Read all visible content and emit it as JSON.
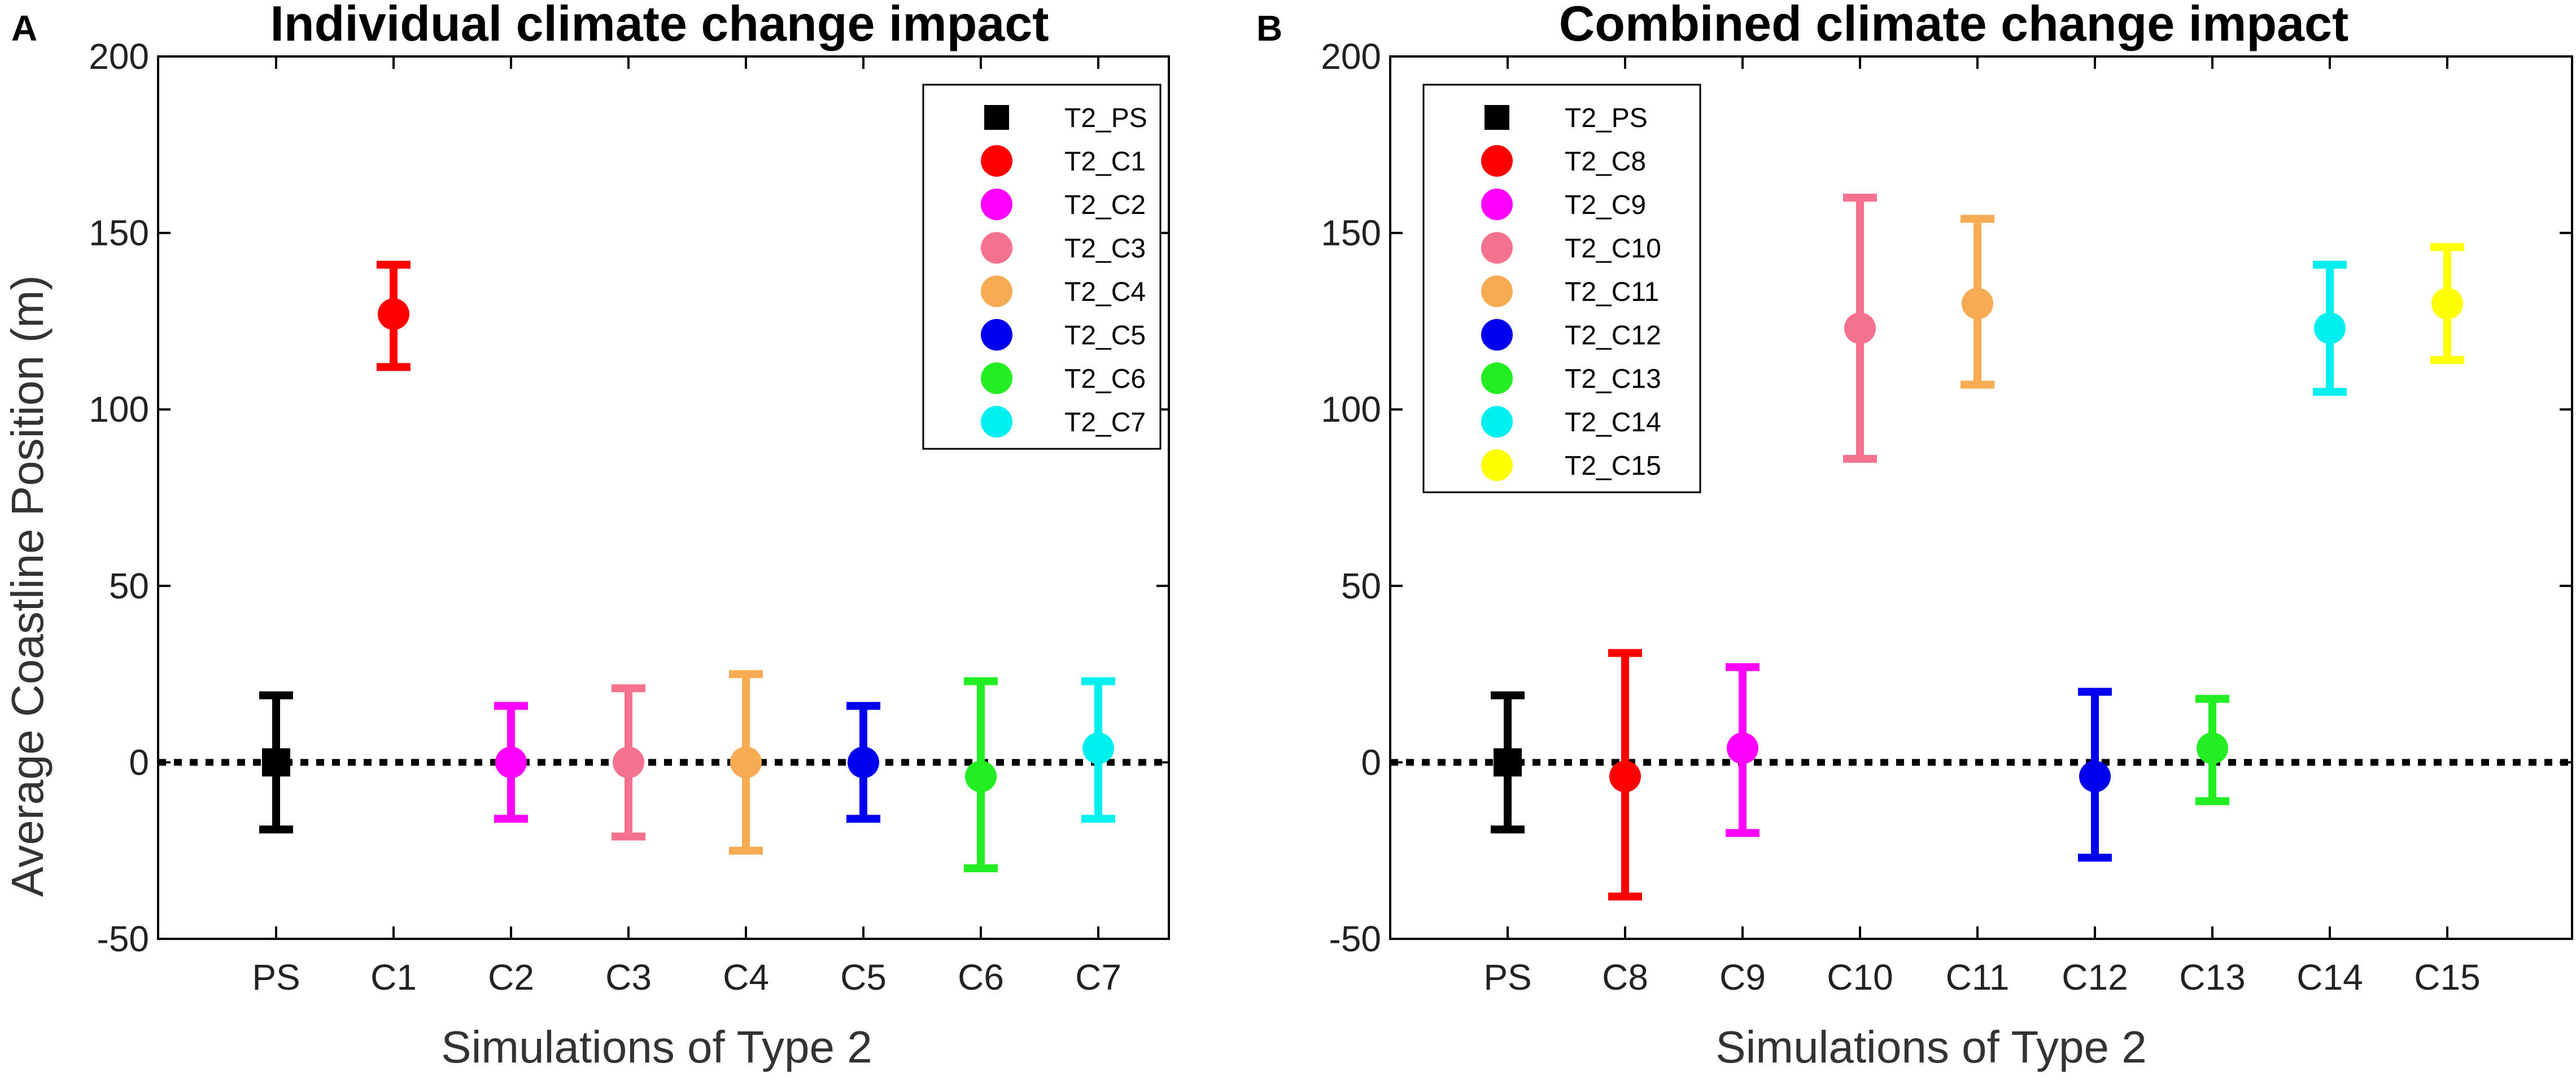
{
  "y_axis_label": "Average Coastline Position (m)",
  "x_axis_label": "Simulations of Type 2",
  "chart_data": [
    {
      "type": "scatter",
      "panel": "A",
      "title": "Individual climate change impact",
      "xlabel": "Simulations of Type 2",
      "ylabel": "Average Coastline Position (m)",
      "ylim": [
        -50,
        200
      ],
      "yticks": [
        -50,
        0,
        50,
        100,
        150,
        200
      ],
      "legend_position": "top-right",
      "zero_line": 0,
      "series": [
        {
          "category": "PS",
          "legend": "T2_PS",
          "marker": "square",
          "color": "#000000",
          "value": 0,
          "low": -19,
          "high": 19
        },
        {
          "category": "C1",
          "legend": "T2_C1",
          "marker": "circle",
          "color": "#ff0000",
          "value": 127,
          "low": 112,
          "high": 141
        },
        {
          "category": "C2",
          "legend": "T2_C2",
          "marker": "circle",
          "color": "#ff00ff",
          "value": 0,
          "low": -16,
          "high": 16
        },
        {
          "category": "C3",
          "legend": "T2_C3",
          "marker": "circle",
          "color": "#f5728e",
          "value": 0,
          "low": -21,
          "high": 21
        },
        {
          "category": "C4",
          "legend": "T2_C4",
          "marker": "circle",
          "color": "#f7ab52",
          "value": 0,
          "low": -25,
          "high": 25
        },
        {
          "category": "C5",
          "legend": "T2_C5",
          "marker": "circle",
          "color": "#0000ee",
          "value": 0,
          "low": -16,
          "high": 16
        },
        {
          "category": "C6",
          "legend": "T2_C6",
          "marker": "circle",
          "color": "#22ee22",
          "value": -4,
          "low": -30,
          "high": 23
        },
        {
          "category": "C7",
          "legend": "T2_C7",
          "marker": "circle",
          "color": "#00f0f0",
          "value": 4,
          "low": -16,
          "high": 23
        }
      ]
    },
    {
      "type": "scatter",
      "panel": "B",
      "title": "Combined climate change impact",
      "xlabel": "Simulations of Type 2",
      "ylabel": "",
      "ylim": [
        -50,
        200
      ],
      "yticks": [
        -50,
        0,
        50,
        100,
        150,
        200
      ],
      "legend_position": "top-left",
      "zero_line": 0,
      "series": [
        {
          "category": "PS",
          "legend": "T2_PS",
          "marker": "square",
          "color": "#000000",
          "value": 0,
          "low": -19,
          "high": 19
        },
        {
          "category": "C8",
          "legend": "T2_C8",
          "marker": "circle",
          "color": "#ff0000",
          "value": -4,
          "low": -38,
          "high": 31
        },
        {
          "category": "C9",
          "legend": "T2_C9",
          "marker": "circle",
          "color": "#ff00ff",
          "value": 4,
          "low": -20,
          "high": 27
        },
        {
          "category": "C10",
          "legend": "T2_C10",
          "marker": "circle",
          "color": "#f5728e",
          "value": 123,
          "low": 86,
          "high": 160
        },
        {
          "category": "C11",
          "legend": "T2_C11",
          "marker": "circle",
          "color": "#f7ab52",
          "value": 130,
          "low": 107,
          "high": 154
        },
        {
          "category": "C12",
          "legend": "T2_C12",
          "marker": "circle",
          "color": "#0000ee",
          "value": -4,
          "low": -27,
          "high": 20
        },
        {
          "category": "C13",
          "legend": "T2_C13",
          "marker": "circle",
          "color": "#22ee22",
          "value": 4,
          "low": -11,
          "high": 18
        },
        {
          "category": "C14",
          "legend": "T2_C14",
          "marker": "circle",
          "color": "#00f0f0",
          "value": 123,
          "low": 105,
          "high": 141
        },
        {
          "category": "C15",
          "legend": "T2_C15",
          "marker": "circle",
          "color": "#ffff00",
          "value": 130,
          "low": 114,
          "high": 146
        }
      ]
    }
  ]
}
